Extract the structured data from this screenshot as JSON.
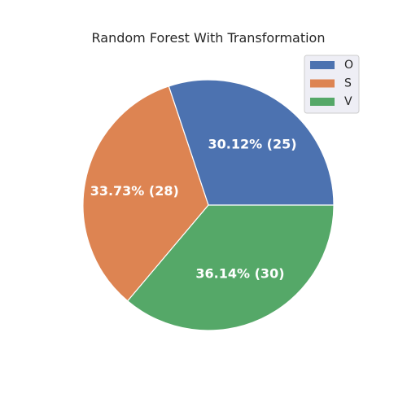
{
  "chart_data": {
    "type": "pie",
    "title": "Random Forest With Transformation",
    "legend_position": "top-right",
    "slices": [
      {
        "label": "O",
        "value": 25,
        "percent_label": "30.12%  (25)",
        "color": "#4c72b0"
      },
      {
        "label": "S",
        "value": 28,
        "percent_label": "33.73%  (28)",
        "color": "#dd8452"
      },
      {
        "label": "V",
        "value": 30,
        "percent_label": "36.14%  (30)",
        "color": "#55a868"
      }
    ]
  }
}
